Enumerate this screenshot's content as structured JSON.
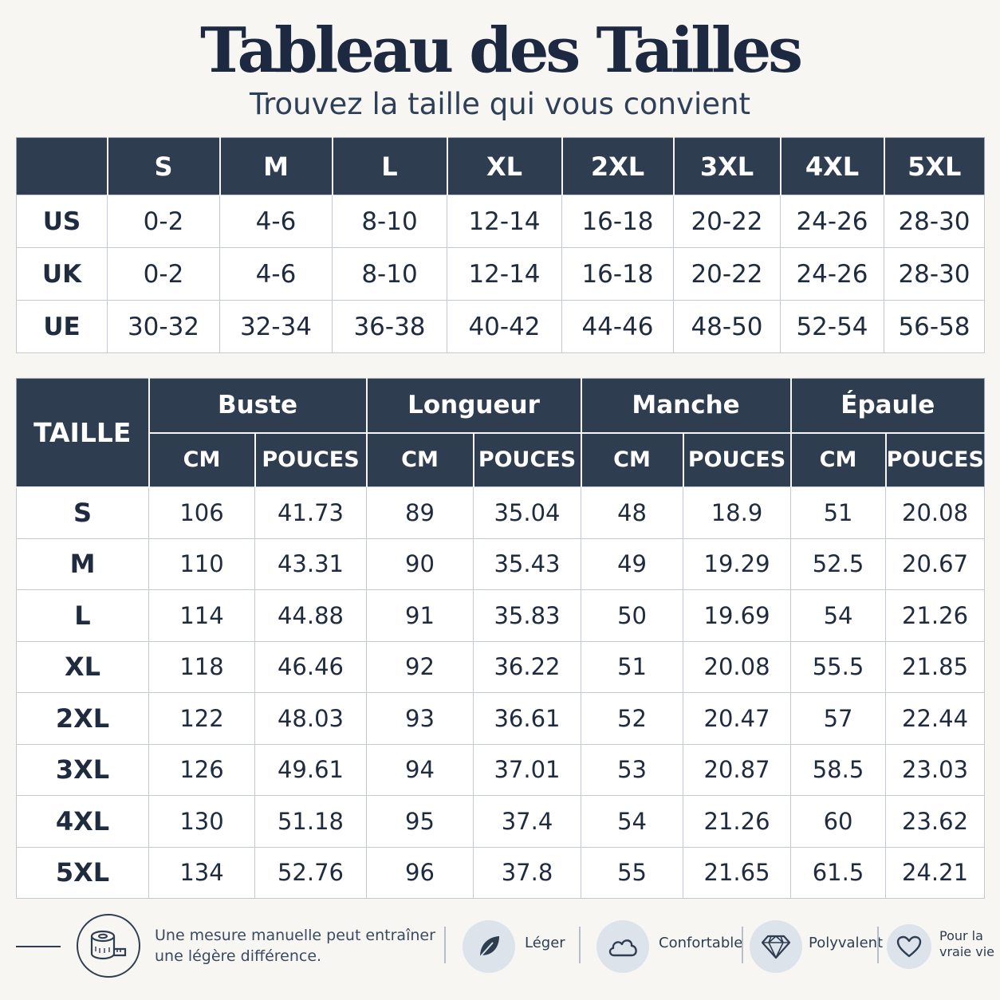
{
  "header": {
    "title": "Tableau des Tailles",
    "subtitle": "Trouvez la taille qui vous convient"
  },
  "conversion": {
    "columns": [
      "S",
      "M",
      "L",
      "XL",
      "2XL",
      "3XL",
      "4XL",
      "5XL"
    ],
    "rows": [
      {
        "label": "US",
        "values": [
          "0-2",
          "4-6",
          "8-10",
          "12-14",
          "16-18",
          "20-22",
          "24-26",
          "28-30"
        ]
      },
      {
        "label": "UK",
        "values": [
          "0-2",
          "4-6",
          "8-10",
          "12-14",
          "16-18",
          "20-22",
          "24-26",
          "28-30"
        ]
      },
      {
        "label": "UE",
        "values": [
          "30-32",
          "32-34",
          "36-38",
          "40-42",
          "44-46",
          "48-50",
          "52-54",
          "56-58"
        ]
      }
    ]
  },
  "measurements": {
    "size_header": "TAILLE",
    "groups": [
      "Buste",
      "Longueur",
      "Manche",
      "Épaule"
    ],
    "unit_cm": "CM",
    "unit_in": "POUCES",
    "rows": [
      {
        "size": "S",
        "values": [
          "106",
          "41.73",
          "89",
          "35.04",
          "48",
          "18.9",
          "51",
          "20.08"
        ]
      },
      {
        "size": "M",
        "values": [
          "110",
          "43.31",
          "90",
          "35.43",
          "49",
          "19.29",
          "52.5",
          "20.67"
        ]
      },
      {
        "size": "L",
        "values": [
          "114",
          "44.88",
          "91",
          "35.83",
          "50",
          "19.69",
          "54",
          "21.26"
        ]
      },
      {
        "size": "XL",
        "values": [
          "118",
          "46.46",
          "92",
          "36.22",
          "51",
          "20.08",
          "55.5",
          "21.85"
        ]
      },
      {
        "size": "2XL",
        "values": [
          "122",
          "48.03",
          "93",
          "36.61",
          "52",
          "20.47",
          "57",
          "22.44"
        ]
      },
      {
        "size": "3XL",
        "values": [
          "126",
          "49.61",
          "94",
          "37.01",
          "53",
          "20.87",
          "58.5",
          "23.03"
        ]
      },
      {
        "size": "4XL",
        "values": [
          "130",
          "51.18",
          "95",
          "37.4",
          "54",
          "21.26",
          "60",
          "23.62"
        ]
      },
      {
        "size": "5XL",
        "values": [
          "134",
          "52.76",
          "96",
          "37.8",
          "55",
          "21.65",
          "61.5",
          "24.21"
        ]
      }
    ]
  },
  "footer": {
    "note_line1": "Une mesure manuelle peut entraîner",
    "note_line2": "une légère différence.",
    "features": [
      {
        "icon": "leaf-icon",
        "label": "Léger"
      },
      {
        "icon": "cloud-icon",
        "label": "Confortable"
      },
      {
        "icon": "diamond-icon",
        "label": "Polyvalent"
      },
      {
        "icon": "heart-icon",
        "label_line1": "Pour la",
        "label_line2": "vraie vie"
      }
    ]
  },
  "colors": {
    "header_bg": "#2f3d50",
    "page_bg": "#f7f6f2",
    "title": "#1c2940",
    "icon_circle": "#dde3ea"
  }
}
